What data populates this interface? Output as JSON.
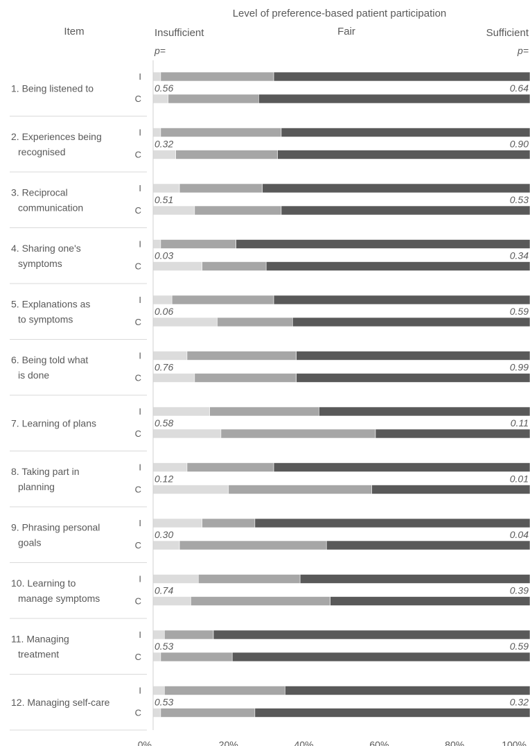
{
  "chart_data": {
    "type": "bar",
    "stacked": true,
    "orientation": "horizontal",
    "title": "Level of preference-based patient participation",
    "item_header": "Item",
    "level_labels": [
      "Insufficient",
      "Fair",
      "Sufficient"
    ],
    "p_header_left": "p=",
    "p_header_right": "p=",
    "xlim": [
      0,
      100
    ],
    "x_ticks": [
      "0%",
      "20%",
      "40%",
      "60%",
      "80%",
      "100%"
    ],
    "grid": false,
    "colors": {
      "insufficient": "#dcdcdc",
      "fair": "#a6a6a6",
      "sufficient": "#595959"
    },
    "groups": [
      "I",
      "C"
    ],
    "items": [
      {
        "label_lines": [
          "1. Being listened to"
        ],
        "p_left": "0.56",
        "p_right": "0.64",
        "I": [
          2,
          30,
          68
        ],
        "C": [
          4,
          24,
          72
        ]
      },
      {
        "label_lines": [
          "2. Experiences being",
          "recognised"
        ],
        "p_left": "0.32",
        "p_right": "0.90",
        "I": [
          2,
          32,
          66
        ],
        "C": [
          6,
          27,
          67
        ]
      },
      {
        "label_lines": [
          "3. Reciprocal",
          "communication"
        ],
        "p_left": "0.51",
        "p_right": "0.53",
        "I": [
          7,
          22,
          71
        ],
        "C": [
          11,
          23,
          66
        ]
      },
      {
        "label_lines": [
          "4. Sharing one's",
          "symptoms"
        ],
        "p_left": "0.03",
        "p_right": "0.34",
        "I": [
          2,
          20,
          78
        ],
        "C": [
          13,
          17,
          70
        ]
      },
      {
        "label_lines": [
          "5. Explanations as",
          "to symptoms"
        ],
        "p_left": "0.06",
        "p_right": "0.59",
        "I": [
          5,
          27,
          68
        ],
        "C": [
          17,
          20,
          63
        ]
      },
      {
        "label_lines": [
          "6. Being told what",
          "is done"
        ],
        "p_left": "0.76",
        "p_right": "0.99",
        "I": [
          9,
          29,
          62
        ],
        "C": [
          11,
          27,
          62
        ]
      },
      {
        "label_lines": [
          "7. Learning of plans"
        ],
        "p_left": "0.58",
        "p_right": "0.11",
        "I": [
          15,
          29,
          56
        ],
        "C": [
          18,
          41,
          41
        ]
      },
      {
        "label_lines": [
          "8. Taking part in",
          "planning"
        ],
        "p_left": "0.12",
        "p_right": "0.01",
        "I": [
          9,
          23,
          68
        ],
        "C": [
          20,
          38,
          42
        ]
      },
      {
        "label_lines": [
          "9. Phrasing personal",
          "goals"
        ],
        "p_left": "0.30",
        "p_right": "0.04",
        "I": [
          13,
          14,
          73
        ],
        "C": [
          7,
          39,
          54
        ]
      },
      {
        "label_lines": [
          "10. Learning to",
          "manage symptoms"
        ],
        "p_left": "0.74",
        "p_right": "0.39",
        "I": [
          12,
          27,
          61
        ],
        "C": [
          10,
          37,
          53
        ]
      },
      {
        "label_lines": [
          "11. Managing",
          "treatment"
        ],
        "p_left": "0.53",
        "p_right": "0.59",
        "I": [
          3,
          13,
          84
        ],
        "C": [
          2,
          19,
          79
        ]
      },
      {
        "label_lines": [
          "12. Managing self-care"
        ],
        "p_left": "0.53",
        "p_right": "0.32",
        "I": [
          3,
          32,
          65
        ],
        "C": [
          2,
          25,
          73
        ]
      }
    ]
  }
}
